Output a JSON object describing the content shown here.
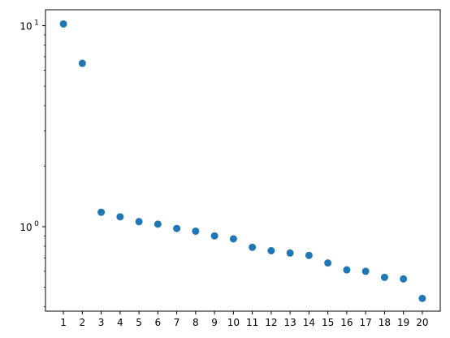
{
  "chart_data": {
    "type": "scatter",
    "x": [
      1,
      2,
      3,
      4,
      5,
      6,
      7,
      8,
      9,
      10,
      11,
      12,
      13,
      14,
      15,
      16,
      17,
      18,
      19,
      20
    ],
    "y": [
      10.2,
      6.5,
      1.18,
      1.12,
      1.06,
      1.03,
      0.98,
      0.95,
      0.9,
      0.87,
      0.79,
      0.76,
      0.74,
      0.72,
      0.66,
      0.61,
      0.6,
      0.56,
      0.55,
      0.44
    ],
    "title": "",
    "xlabel": "",
    "ylabel": "",
    "xticks": [
      "1",
      "2",
      "3",
      "4",
      "5",
      "6",
      "7",
      "8",
      "9",
      "10",
      "11",
      "12",
      "13",
      "14",
      "15",
      "16",
      "17",
      "18",
      "19",
      "20"
    ],
    "yscale": "log",
    "ylim": [
      0.38,
      12
    ],
    "xlim": [
      0.05,
      20.95
    ],
    "yticks_major": [
      {
        "value": 1,
        "label": "10",
        "exponent": "0"
      },
      {
        "value": 10,
        "label": "10",
        "exponent": "1"
      }
    ],
    "grid": false,
    "legend": false,
    "marker_color": "#1f77b4"
  }
}
